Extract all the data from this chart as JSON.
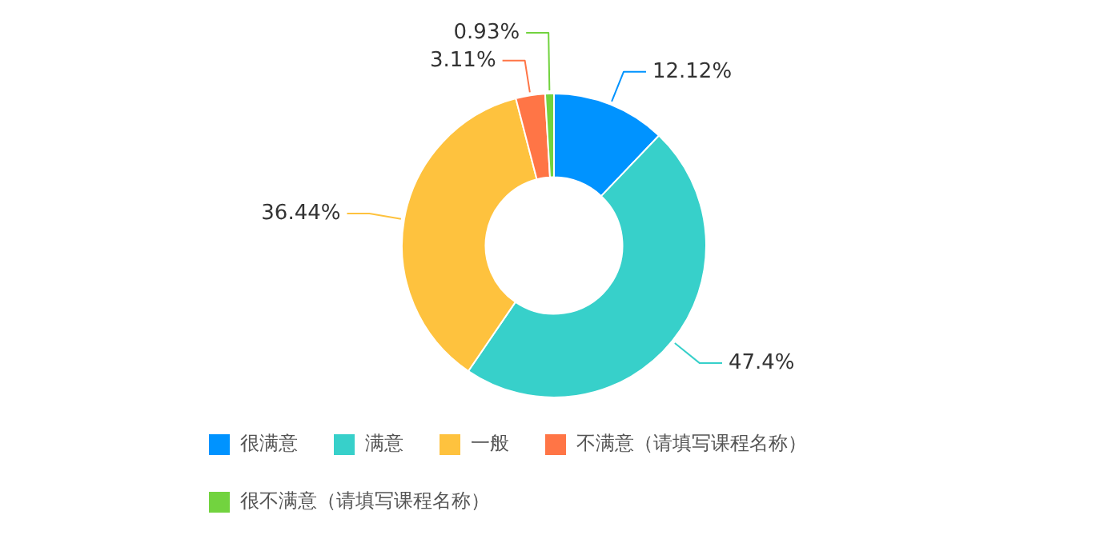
{
  "chart_data": {
    "type": "donut",
    "categories": [
      "很满意",
      "满意",
      "一般",
      "不满意（请填写课程名称）",
      "很不满意（请填写课程名称）"
    ],
    "values": [
      12.12,
      47.4,
      36.44,
      3.11,
      0.93
    ],
    "colors": [
      "#0093ff",
      "#37d0ca",
      "#fec23e",
      "#ff7546",
      "#72d33f"
    ],
    "value_labels": [
      "12.12%",
      "47.4%",
      "36.44%",
      "3.11%",
      "0.93%"
    ],
    "legend": "bottom"
  }
}
